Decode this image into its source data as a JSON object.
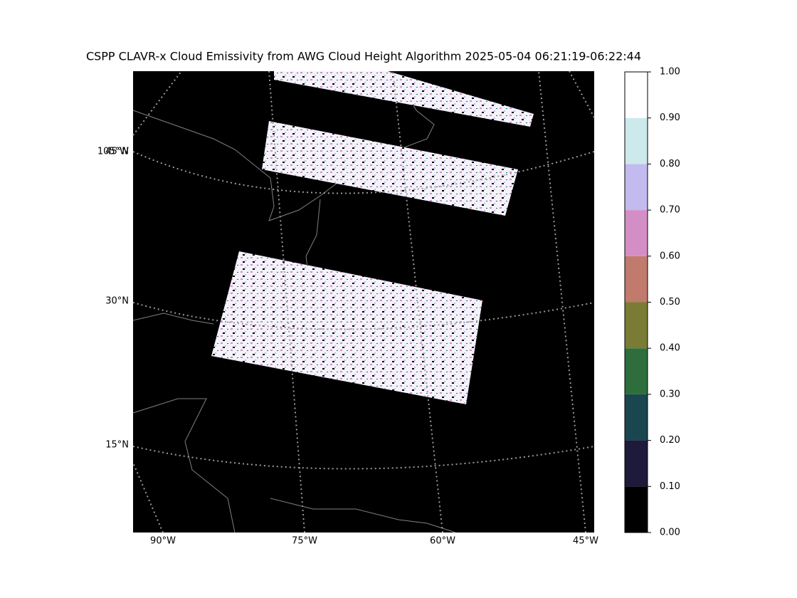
{
  "title": "CSPP CLAVR-x Cloud Emissivity from AWG Cloud Height Algorithm 2025-05-04 06:21:19-06:22:44",
  "map": {
    "lat_labels": [
      "45°N",
      "30°N",
      "15°N"
    ],
    "lon_labels": [
      "105°W",
      "90°W",
      "75°W",
      "60°W",
      "45°W"
    ]
  },
  "colorbar": {
    "lim": [
      0,
      1
    ],
    "ticks": [
      {
        "value": 0,
        "label": "0.00"
      },
      {
        "value": 0.1,
        "label": "0.10"
      },
      {
        "value": 0.2,
        "label": "0.20"
      },
      {
        "value": 0.3,
        "label": "0.30"
      },
      {
        "value": 0.4,
        "label": "0.40"
      },
      {
        "value": 0.5,
        "label": "0.50"
      },
      {
        "value": 0.6,
        "label": "0.60"
      },
      {
        "value": 0.7,
        "label": "0.70"
      },
      {
        "value": 0.8,
        "label": "0.80"
      },
      {
        "value": 0.9,
        "label": "0.90"
      },
      {
        "value": 1,
        "label": "1.00"
      }
    ],
    "colors": [
      "#000000",
      "#1e1a3b",
      "#1a4650",
      "#2e6e3c",
      "#7a7c35",
      "#c07b6d",
      "#d48ec6",
      "#c3baf0",
      "#cce9ec",
      "#ffffff"
    ]
  }
}
